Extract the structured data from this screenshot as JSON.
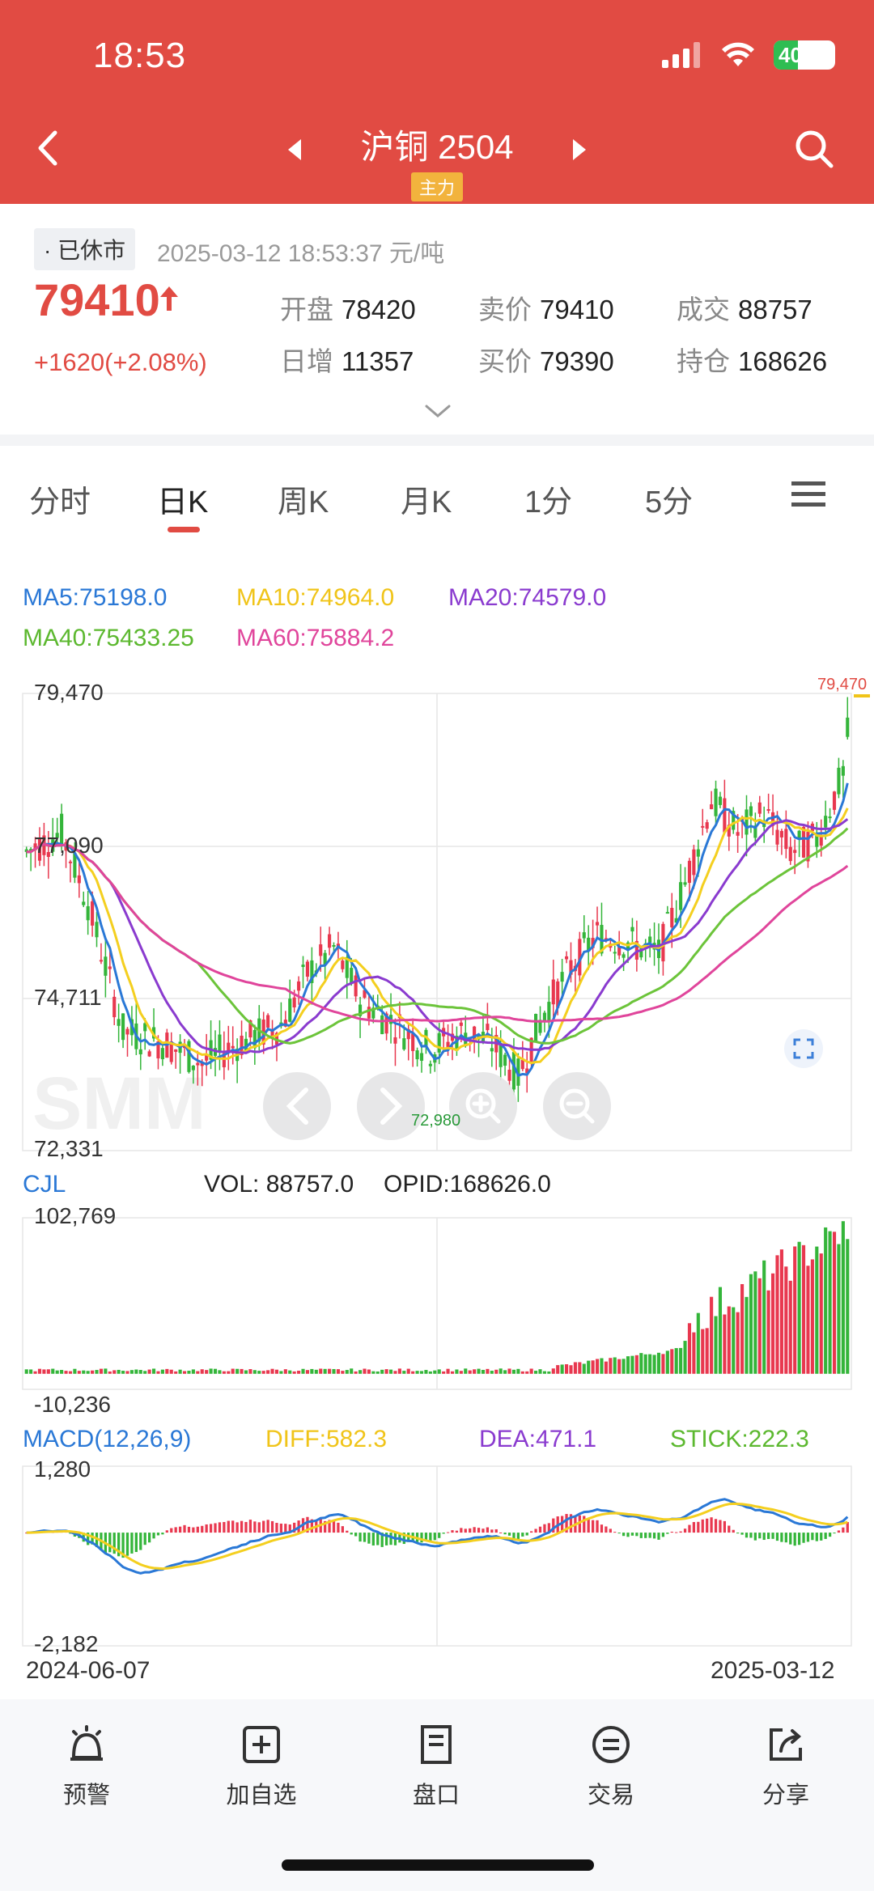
{
  "status": {
    "time": "18:53",
    "battery": "40"
  },
  "nav": {
    "title": "沪铜 2504",
    "tag": "主力"
  },
  "quote": {
    "status_badge": "· 已休市",
    "timestamp": "2025-03-12 18:53:37 元/吨",
    "price": "79410",
    "change": "+1620(+2.08%)",
    "stats": [
      {
        "key": "开盘",
        "value": "78420"
      },
      {
        "key": "卖价",
        "value": "79410"
      },
      {
        "key": "成交",
        "value": "88757"
      },
      {
        "key": "日增",
        "value": "11357"
      },
      {
        "key": "买价",
        "value": "79390"
      },
      {
        "key": "持仓",
        "value": "168626"
      }
    ]
  },
  "tabs": [
    "分时",
    "日K",
    "周K",
    "月K",
    "1分",
    "5分"
  ],
  "active_tab": "日K",
  "ma_legend": {
    "ma5": "MA5:75198.0",
    "ma10": "MA10:74964.0",
    "ma20": "MA20:74579.0",
    "ma40": "MA40:75433.25",
    "ma60": "MA60:75884.2"
  },
  "colors": {
    "up": "#e8384f",
    "down": "#34b53a",
    "ma5": "#2a78d6",
    "ma10": "#f4cf1f",
    "ma20": "#8a3bcf",
    "ma40": "#6cc43a",
    "ma60": "#e0459b",
    "header": "#e14b43"
  },
  "price_axis": {
    "top": "79,470",
    "mid_high": "77,090",
    "mid_low": "74,711",
    "bottom": "72,331",
    "max_marker": "79,470",
    "min_marker": "72,980"
  },
  "volume": {
    "label": "CJL",
    "vol": "VOL: 88757.0",
    "opid": "OPID:168626.0",
    "top": "102,769",
    "bottom": "-10,236"
  },
  "macd": {
    "label": "MACD(12,26,9)",
    "diff": "DIFF:582.3",
    "dea": "DEA:471.1",
    "stick": "STICK:222.3",
    "top": "1,280",
    "bottom": "-2,182"
  },
  "date_axis": {
    "start": "2024-06-07",
    "end": "2025-03-12"
  },
  "chart_data": {
    "type": "candlestick",
    "ylim": [
      72331,
      79470
    ],
    "last_close": 79410,
    "high_marker": 79470,
    "low_marker": 72980,
    "ma_last": {
      "MA5": 75198.0,
      "MA10": 74964.0,
      "MA20": 74579.0,
      "MA40": 75433.25,
      "MA60": 75884.2
    },
    "volume_range": [
      -10236,
      102769
    ],
    "macd_range": [
      -2182,
      1280
    ],
    "macd_last": {
      "DIFF": 582.3,
      "DEA": 471.1,
      "STICK": 222.3
    }
  },
  "bottom_bar": [
    {
      "label": "预警",
      "icon": "alarm-icon"
    },
    {
      "label": "加自选",
      "icon": "add-watchlist-icon"
    },
    {
      "label": "盘口",
      "icon": "order-book-icon"
    },
    {
      "label": "交易",
      "icon": "trade-icon"
    },
    {
      "label": "分享",
      "icon": "share-icon"
    }
  ]
}
